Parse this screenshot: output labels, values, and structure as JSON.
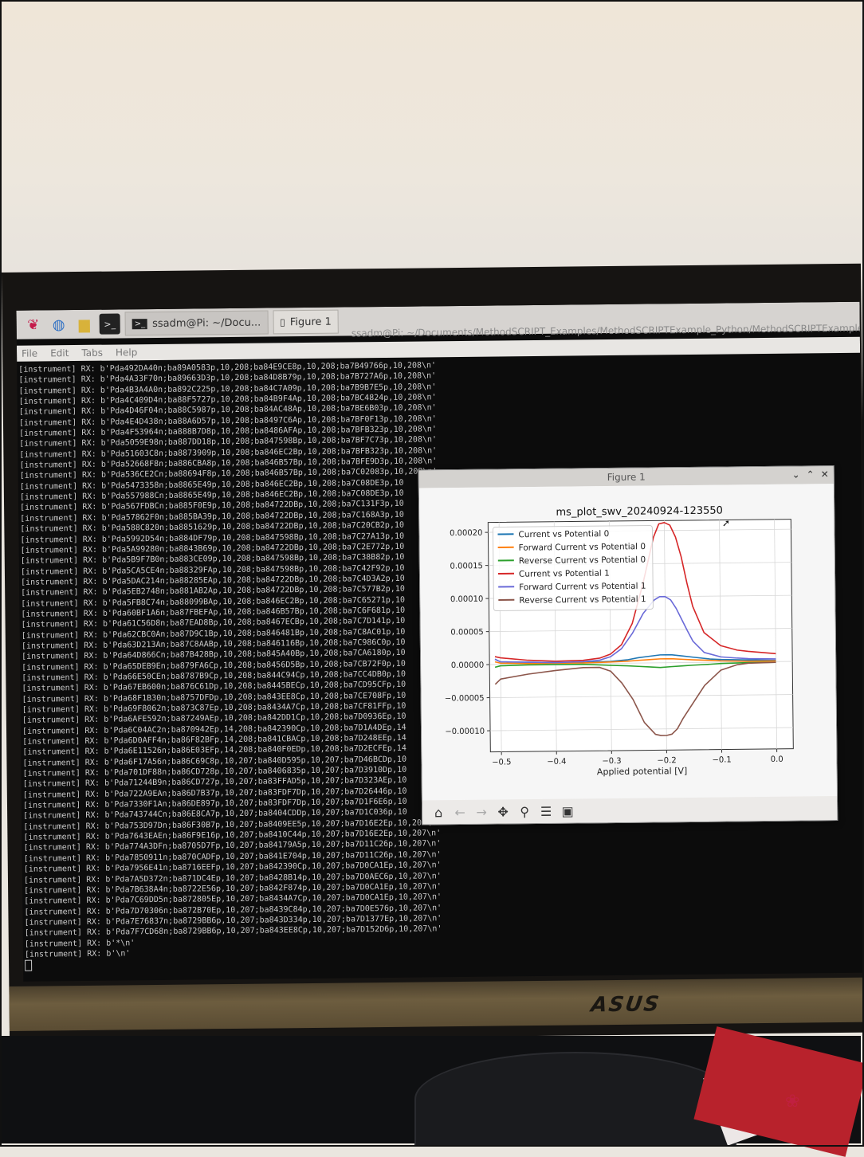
{
  "taskbar": {
    "terminal_task": "ssadm@Pi: ~/Docu...",
    "figure_task": "Figure 1",
    "terminal_title": "ssadm@Pi: ~/Documents/MethodSCRIPT_Examples/MethodSCRIPTExample_Python/MethodSCRIPTExample_P"
  },
  "menu": [
    "File",
    "Edit",
    "Tabs",
    "Help"
  ],
  "monitor_brand": "ASUS",
  "terminal_lines": [
    "[instrument] RX: b'Pda492DA40n;ba89A0583p,10,208;ba84E9CE8p,10,208;ba7B49766p,10,208\\n'",
    "[instrument] RX: b'Pda4A33F70n;ba89663D3p,10,208;ba84D8B79p,10,208;ba7B727A6p,10,208\\n'",
    "[instrument] RX: b'Pda4B3A4A0n;ba892C225p,10,208;ba84C7A09p,10,208;ba7B9B7E5p,10,208\\n'",
    "[instrument] RX: b'Pda4C409D4n;ba88F5727p,10,208;ba84B9F4Ap,10,208;ba7BC4824p,10,208\\n'",
    "[instrument] RX: b'Pda4D46F04n;ba88C5987p,10,208;ba84AC48Ap,10,208;ba7BE6B03p,10,208\\n'",
    "[instrument] RX: b'Pda4E4D438n;ba88A6D57p,10,208;ba8497C6Ap,10,208;ba7BF0F13p,10,208\\n'",
    "[instrument] RX: b'Pda4F53964n;ba888B7D8p,10,208;ba8486AFAp,10,208;ba7BFB323p,10,208\\n'",
    "[instrument] RX: b'Pda5059E98n;ba887DD18p,10,208;ba847598Bp,10,208;ba7BF7C73p,10,208\\n'",
    "[instrument] RX: b'Pda51603C8n;ba8873909p,10,208;ba846EC2Bp,10,208;ba7BFB323p,10,208\\n'",
    "[instrument] RX: b'Pda52668F8n;ba886CBA8p,10,208;ba846B57Bp,10,208;ba7BFE9D3p,10,208\\n'",
    "[instrument] RX: b'Pda536CE2Cn;ba88694F8p,10,208;ba846B57Bp,10,208;ba7C02083p,10,208\\n'",
    "[instrument] RX: b'Pda5473358n;ba8865E49p,10,208;ba846EC2Bp,10,208;ba7C08DE3p,10",
    "[instrument] RX: b'Pda557988Cn;ba8865E49p,10,208;ba846EC2Bp,10,208;ba7C08DE3p,10",
    "[instrument] RX: b'Pda567FDBCn;ba885F0E9p,10,208;ba84722DBp,10,208;ba7C131F3p,10",
    "[instrument] RX: b'Pda57862F0n;ba885BA39p,10,208;ba84722DBp,10,208;ba7C168A3p,10",
    "[instrument] RX: b'Pda588C820n;ba8851629p,10,208;ba84722DBp,10,208;ba7C20CB2p,10",
    "[instrument] RX: b'Pda5992D54n;ba884DF79p,10,208;ba847598Bp,10,208;ba7C27A13p,10",
    "[instrument] RX: b'Pda5A99280n;ba8843B69p,10,208;ba84722DBp,10,208;ba7C2E772p,10",
    "[instrument] RX: b'Pda5B9F7B0n;ba883CE09p,10,208;ba847598Bp,10,208;ba7C38B82p,10",
    "[instrument] RX: b'Pda5CA5CE4n;ba88329FAp,10,208;ba847598Bp,10,208;ba7C42F92p,10",
    "[instrument] RX: b'Pda5DAC214n;ba88285EAp,10,208;ba84722DBp,10,208;ba7C4D3A2p,10",
    "[instrument] RX: b'Pda5EB2748n;ba881AB2Ap,10,208;ba84722DBp,10,208;ba7C577B2p,10",
    "[instrument] RX: b'Pda5FB8C74n;ba88099BAp,10,208;ba846EC2Bp,10,208;ba7C65271p,10",
    "[instrument] RX: b'Pda60BF1A6n;ba87FBEFAp,10,208;ba846B57Bp,10,208;ba7C6F681p,10",
    "[instrument] RX: b'Pda61C56D8n;ba87EAD8Bp,10,208;ba8467ECBp,10,208;ba7C7D141p,10",
    "[instrument] RX: b'Pda62CBC0An;ba87D9C1Bp,10,208;ba846481Bp,10,208;ba7C8AC01p,10",
    "[instrument] RX: b'Pda63D213An;ba87C8AABp,10,208;ba846116Bp,10,208;ba7C986C0p,10",
    "[instrument] RX: b'Pda64D866Cn;ba87B428Bp,10,208;ba845A40Bp,10,208;ba7CA6180p,10",
    "[instrument] RX: b'Pda65DEB9En;ba879FA6Cp,10,208;ba8456D5Bp,10,208;ba7CB72F0p,10",
    "[instrument] RX: b'Pda66E50CEn;ba8787B9Cp,10,208;ba844C94Cp,10,208;ba7CC4DB0p,10",
    "[instrument] RX: b'Pda67EB600n;ba876C61Dp,10,208;ba8445BECp,10,208;ba7CD95CFp,10",
    "[instrument] RX: b'Pda68F1B30n;ba8757DFDp,10,208;ba843EE8Cp,10,208;ba7CE708Fp,10",
    "[instrument] RX: b'Pda69F8062n;ba873C87Ep,10,208;ba8434A7Cp,10,208;ba7CF81FFp,10",
    "[instrument] RX: b'Pda6AFE592n;ba87249AEp,10,208;ba842DD1Cp,10,208;ba7D0936Ep,10",
    "[instrument] RX: b'Pda6C04AC2n;ba870942Ep,14,208;ba842390Cp,10,208;ba7D1A4DEp,14",
    "[instrument] RX: b'Pda6D0AFF4n;ba86F82BFp,14,208;ba841CBACp,10,208;ba7D248EEp,14",
    "[instrument] RX: b'Pda6E11526n;ba86E03EFp,14,208;ba840F0EDp,10,208;ba7D2ECFEp,14",
    "[instrument] RX: b'Pda6F17A56n;ba86C69C8p,10,207;ba840D595p,10,207;ba7D46BCDp,10",
    "[instrument] RX: b'Pda701DF88n;ba86CD728p,10,207;ba8406835p,10,207;ba7D3910Dp,10",
    "[instrument] RX: b'Pda71244B9n;ba86CD727p,10,207;ba83FFAD5p,10,207;ba7D323AEp,10",
    "[instrument] RX: b'Pda722A9EAn;ba86D7B37p,10,207;ba83FDF7Dp,10,207;ba7D26446p,10",
    "[instrument] RX: b'Pda7330F1An;ba86DE897p,10,207;ba83FDF7Dp,10,207;ba7D1F6E6p,10",
    "[instrument] RX: b'Pda743744Cn;ba86E8CA7p,10,207;ba8404CDDp,10,207;ba7D1C036p,10",
    "[instrument] RX: b'Pda753D97Dn;ba86F30B7p,10,207;ba8409EE5p,10,207;ba7D16E2Ep,10,207\\n'",
    "[instrument] RX: b'Pda7643EAEn;ba86F9E16p,10,207;ba8410C44p,10,207;ba7D16E2Ep,10,207\\n'",
    "[instrument] RX: b'Pda774A3DFn;ba8705D7Fp,10,207;ba84179A5p,10,207;ba7D11C26p,10,207\\n'",
    "[instrument] RX: b'Pda7850911n;ba870CADFp,10,207;ba841E704p,10,207;ba7D11C26p,10,207\\n'",
    "[instrument] RX: b'Pda7956E41n;ba8716EEFp,10,207;ba842390Cp,10,207;ba7D0CA1Ep,10,207\\n'",
    "[instrument] RX: b'Pda7A5D372n;ba871DC4Ep,10,207;ba8428B14p,10,207;ba7D0AEC6p,10,207\\n'",
    "[instrument] RX: b'Pda7B638A4n;ba8722E56p,10,207;ba842F874p,10,207;ba7D0CA1Ep,10,207\\n'",
    "[instrument] RX: b'Pda7C69DD5n;ba872805Ep,10,207;ba8434A7Cp,10,207;ba7D0CA1Ep,10,207\\n'",
    "[instrument] RX: b'Pda7D70306n;ba872B70Ep,10,207;ba8439C84p,10,207;ba7D0E576p,10,207\\n'",
    "[instrument] RX: b'Pda7E76837n;ba8729BB6p,10,207;ba843D334p,10,207;ba7D1377Ep,10,207\\n'",
    "[instrument] RX: b'Pda7F7CD68n;ba8729BB6p,10,207;ba843EE8Cp,10,207;ba7D152D6p,10,207\\n'",
    "[instrument] RX: b'*\\n'",
    "[instrument] RX: b'\\n'"
  ],
  "figure": {
    "window_title": "Figure 1",
    "controls": [
      "⌄",
      "⌃",
      "✕"
    ]
  },
  "chart_data": {
    "type": "line",
    "title": "ms_plot_swv_20240924-123550",
    "xlabel": "Applied potential [V]",
    "ylabel": "",
    "xlim": [
      -0.52,
      0.03
    ],
    "ylim": [
      -0.000132,
      0.000215
    ],
    "xticks": [
      -0.5,
      -0.4,
      -0.3,
      -0.2,
      -0.1,
      0.0
    ],
    "xtick_labels": [
      "−0.5",
      "−0.4",
      "−0.3",
      "−0.2",
      "−0.1",
      "0.0"
    ],
    "yticks": [
      -0.0001,
      -5e-05,
      0,
      5e-05,
      0.0001,
      0.00015,
      0.0002
    ],
    "ytick_labels": [
      "−0.00010",
      "−0.00005",
      "0.00000",
      "0.00005",
      "0.00010",
      "0.00015",
      "0.00020"
    ],
    "grid": true,
    "legend_position": "upper-left",
    "series": [
      {
        "name": "Current vs Potential 0",
        "color": "#1f77b4",
        "x": [
          -0.51,
          -0.5,
          -0.45,
          -0.4,
          -0.35,
          -0.3,
          -0.27,
          -0.25,
          -0.23,
          -0.21,
          -0.19,
          -0.17,
          -0.15,
          -0.12,
          -0.1,
          -0.05,
          0.0
        ],
        "y": [
          8e-06,
          4e-06,
          3e-06,
          2e-06,
          2e-06,
          3e-06,
          5e-06,
          8e-06,
          1e-05,
          1.2e-05,
          1.2e-05,
          1e-05,
          8e-06,
          5e-06,
          4e-06,
          3e-06,
          2e-06
        ]
      },
      {
        "name": "Forward Current vs Potential 0",
        "color": "#ff7f0e",
        "x": [
          -0.51,
          -0.5,
          -0.45,
          -0.4,
          -0.35,
          -0.3,
          -0.27,
          -0.25,
          -0.23,
          -0.21,
          -0.19,
          -0.17,
          -0.15,
          -0.12,
          -0.1,
          -0.05,
          0.0
        ],
        "y": [
          4e-06,
          2e-06,
          1e-06,
          1e-06,
          1e-06,
          2e-06,
          3e-06,
          4e-06,
          5e-06,
          6e-06,
          6e-06,
          5e-06,
          4e-06,
          3e-06,
          2e-06,
          1e-06,
          1e-06
        ]
      },
      {
        "name": "Reverse Current vs Potential 0",
        "color": "#2ca02c",
        "x": [
          -0.51,
          -0.5,
          -0.45,
          -0.4,
          -0.35,
          -0.3,
          -0.27,
          -0.25,
          -0.23,
          -0.21,
          -0.19,
          -0.17,
          -0.15,
          -0.12,
          -0.1,
          -0.05,
          0.0
        ],
        "y": [
          -4e-06,
          -2e-06,
          -1e-06,
          -1e-06,
          -1e-06,
          -3e-06,
          -4e-06,
          -5e-06,
          -6e-06,
          -7e-06,
          -6e-06,
          -5e-06,
          -4e-06,
          -3e-06,
          -2e-06,
          -1e-06,
          -1e-06
        ]
      },
      {
        "name": "Current vs Potential 1",
        "color": "#d62728",
        "x": [
          -0.51,
          -0.5,
          -0.45,
          -0.4,
          -0.35,
          -0.32,
          -0.3,
          -0.28,
          -0.26,
          -0.24,
          -0.22,
          -0.21,
          -0.2,
          -0.19,
          -0.18,
          -0.17,
          -0.16,
          -0.15,
          -0.13,
          -0.1,
          -0.07,
          -0.05,
          0.0
        ],
        "y": [
          1.2e-05,
          1e-05,
          6e-06,
          4e-06,
          5e-06,
          8e-06,
          1.4e-05,
          2.8e-05,
          6e-05,
          0.00012,
          0.00019,
          0.00021,
          0.000212,
          0.000208,
          0.00019,
          0.00016,
          0.00012,
          8.5e-05,
          4.5e-05,
          2.5e-05,
          1.8e-05,
          1.6e-05,
          1.2e-05
        ]
      },
      {
        "name": "Forward Current vs Potential 1",
        "color": "#6a6ad8",
        "x": [
          -0.51,
          -0.5,
          -0.45,
          -0.4,
          -0.35,
          -0.32,
          -0.3,
          -0.28,
          -0.26,
          -0.24,
          -0.22,
          -0.21,
          -0.2,
          -0.19,
          -0.18,
          -0.17,
          -0.16,
          -0.15,
          -0.13,
          -0.1,
          -0.07,
          -0.05,
          0.0
        ],
        "y": [
          8e-06,
          4e-06,
          3e-06,
          2e-06,
          3e-06,
          5e-06,
          1e-05,
          2.2e-05,
          4.5e-05,
          7.5e-05,
          9.5e-05,
          0.0001,
          0.0001,
          9.5e-05,
          8.2e-05,
          6.5e-05,
          4.8e-05,
          3.2e-05,
          1.5e-05,
          8e-06,
          6e-06,
          5e-06,
          4e-06
        ]
      },
      {
        "name": "Reverse Current vs Potential 1",
        "color": "#8c564b",
        "x": [
          -0.51,
          -0.5,
          -0.45,
          -0.4,
          -0.35,
          -0.32,
          -0.3,
          -0.28,
          -0.26,
          -0.24,
          -0.22,
          -0.21,
          -0.2,
          -0.19,
          -0.18,
          -0.17,
          -0.15,
          -0.13,
          -0.1,
          -0.07,
          -0.05,
          0.0
        ],
        "y": [
          -3e-05,
          -2.2e-05,
          -1.5e-05,
          -1e-05,
          -6e-06,
          -6e-06,
          -1.2e-05,
          -3e-05,
          -5.5e-05,
          -9e-05,
          -0.000108,
          -0.00011,
          -0.00011,
          -0.000108,
          -0.0001,
          -8.5e-05,
          -6e-05,
          -3.5e-05,
          -1.2e-05,
          -4e-06,
          -2e-06,
          -1e-06
        ]
      }
    ]
  }
}
